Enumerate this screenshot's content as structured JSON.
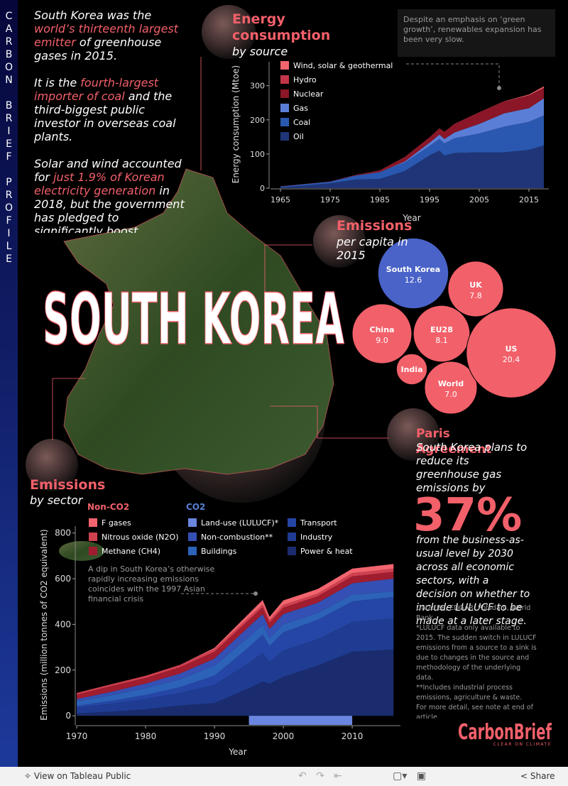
{
  "sidebar": "CARBON BRIEF PROFILE",
  "intro": [
    [
      "South Korea was the ",
      "world’s thirteenth largest emitter",
      " of greenhouse gases in 2015."
    ],
    [
      "It is the ",
      "fourth-largest importer of coal",
      " and the third-biggest public investor in overseas coal plants."
    ],
    [
      "Solar and wind accounted for ",
      "just 1.9% of Korean electricity generation",
      " in 2018, but the government has pledged to significantly boost"
    ]
  ],
  "country": "SOUTH KOREA",
  "chart_data": [
    {
      "type": "area",
      "stacked": true,
      "title": "Energy consumption",
      "subtitle": "by source",
      "annotation": "Despite an emphasis on ‘green growth’, renewables expansion has been very slow.",
      "y_label": "Energy consumption (Mtoe)",
      "x_label": "Year",
      "x": [
        1965,
        1970,
        1975,
        1980,
        1985,
        1990,
        1995,
        1997,
        1998,
        2000,
        2005,
        2010,
        2015,
        2018
      ],
      "series": [
        {
          "name": "Oil",
          "color": "#1f3577",
          "values": [
            2,
            8,
            14,
            25,
            27,
            50,
            96,
            110,
            95,
            103,
            105,
            105,
            112,
            125
          ]
        },
        {
          "name": "Coal",
          "color": "#2a58b0",
          "values": [
            3,
            4,
            5,
            12,
            20,
            25,
            28,
            34,
            36,
            43,
            55,
            75,
            82,
            88
          ]
        },
        {
          "name": "Gas",
          "color": "#5a7ed6",
          "values": [
            0,
            0,
            0,
            0,
            0,
            3,
            9,
            13,
            13,
            17,
            28,
            39,
            40,
            50
          ]
        },
        {
          "name": "Nuclear",
          "color": "#8a1627",
          "values": [
            0,
            0,
            0,
            1,
            4,
            12,
            15,
            17,
            20,
            24,
            33,
            34,
            37,
            30
          ]
        },
        {
          "name": "Hydro",
          "color": "#c23648",
          "values": [
            0.5,
            0.5,
            0.5,
            0.5,
            1,
            1,
            1,
            1,
            1,
            1,
            1,
            1,
            1,
            1
          ]
        },
        {
          "name": "Wind, solar & geothermal",
          "color": "#f2646e",
          "values": [
            0,
            0,
            0,
            0,
            0,
            0,
            0,
            0,
            0,
            0,
            0.2,
            0.5,
            2,
            4
          ]
        }
      ],
      "xlim": [
        1963,
        2019
      ],
      "ylim": [
        0,
        370
      ],
      "xticks": [
        1965,
        1975,
        1985,
        1995,
        2005,
        2015
      ],
      "yticks": [
        0,
        100,
        200,
        300
      ]
    },
    {
      "type": "bubble",
      "title": "Emissions",
      "subtitle": "per capita in 2015",
      "categories": [
        "South Korea",
        "UK",
        "China",
        "EU28",
        "India",
        "World",
        "US"
      ],
      "values": [
        12.6,
        7.8,
        9.0,
        8.1,
        2.4,
        7.0,
        20.4
      ],
      "value_labels": [
        "12.6",
        "7.8",
        "9.0",
        "8.1",
        null,
        "7.0",
        "20.4"
      ],
      "colors": [
        "#4a63c8",
        "#f2606a",
        "#f2606a",
        "#f2606a",
        "#f2606a",
        "#f2606a",
        "#f2606a"
      ]
    },
    {
      "type": "area",
      "stacked": true,
      "title": "Emissions",
      "subtitle": "by sector",
      "legend_titles": [
        "Non-CO2",
        "CO2"
      ],
      "annotation": "A dip in South Korea’s otherwise rapidly increasing emissions coincides with the 1997 Asian financial crisis",
      "y_label": "Emissions (million tonnes of CO2 equivalent)",
      "x_label": "Year",
      "x": [
        1970,
        1975,
        1980,
        1985,
        1990,
        1995,
        1997,
        1998,
        2000,
        2005,
        2010,
        2016
      ],
      "series": [
        {
          "name": "Power & heat",
          "color": "#1a2c6e",
          "values": [
            10,
            18,
            28,
            45,
            55,
            120,
            150,
            140,
            170,
            220,
            280,
            290
          ]
        },
        {
          "name": "Industry",
          "color": "#1f3c92",
          "values": [
            25,
            35,
            45,
            55,
            80,
            110,
            125,
            95,
            115,
            115,
            130,
            135
          ]
        },
        {
          "name": "Transport",
          "color": "#2546a6",
          "values": [
            8,
            12,
            18,
            25,
            40,
            70,
            80,
            70,
            80,
            85,
            90,
            95
          ]
        },
        {
          "name": "Buildings",
          "color": "#2c62b8",
          "values": [
            20,
            25,
            30,
            35,
            45,
            45,
            45,
            35,
            35,
            30,
            30,
            25
          ]
        },
        {
          "name": "Non-combustion**",
          "color": "#3550b4",
          "values": [
            10,
            15,
            20,
            25,
            30,
            45,
            45,
            40,
            45,
            45,
            50,
            55
          ]
        },
        {
          "name": "Land-use (LULUCF)*",
          "color": "#6a86e0",
          "values": [
            null,
            null,
            null,
            null,
            null,
            -40,
            -40,
            -40,
            -40,
            -40,
            -40,
            null
          ]
        },
        {
          "name": "Methane (CH4)",
          "color": "#a01d30",
          "values": [
            20,
            25,
            25,
            28,
            30,
            30,
            30,
            28,
            28,
            28,
            30,
            30
          ]
        },
        {
          "name": "Nitrous oxide (N2O)",
          "color": "#d0404f",
          "values": [
            7,
            8,
            9,
            10,
            12,
            12,
            12,
            10,
            12,
            12,
            14,
            14
          ]
        },
        {
          "name": "F gases",
          "color": "#f2646e",
          "values": [
            0,
            0,
            0,
            0,
            5,
            15,
            20,
            15,
            20,
            20,
            20,
            20
          ]
        }
      ],
      "xlim": [
        1970,
        2017
      ],
      "ylim": [
        -40,
        830
      ],
      "xticks": [
        1970,
        1980,
        1990,
        2000,
        2010
      ],
      "yticks": [
        0,
        200,
        400,
        600,
        800
      ]
    }
  ],
  "paris": {
    "title": "Paris Agreement",
    "lead": "South Korea plans to reduce its greenhouse gas emissions by",
    "figure": "37%",
    "body": "from the business-as-usual level by 2030 across all economic sectors, with a decision on whether to include LULUCF to be made at a later stage."
  },
  "notes": [
    "Data: BP, EDGAR, Potsdam, World Bank.",
    "*LULUCF data only available to 2015. The sudden switch in LULUCF emissions from a source to a sink is due to changes in the source and methodology of the underlying data.",
    "**Includes industrial process emissions, agriculture & waste.",
    "For more detail, see note at end of article."
  ],
  "logo": {
    "name": "CarbonBrief",
    "tagline": "CLEAR ON CLIMATE"
  },
  "toolbar": {
    "view": "View on Tableau Public",
    "share": "Share"
  }
}
